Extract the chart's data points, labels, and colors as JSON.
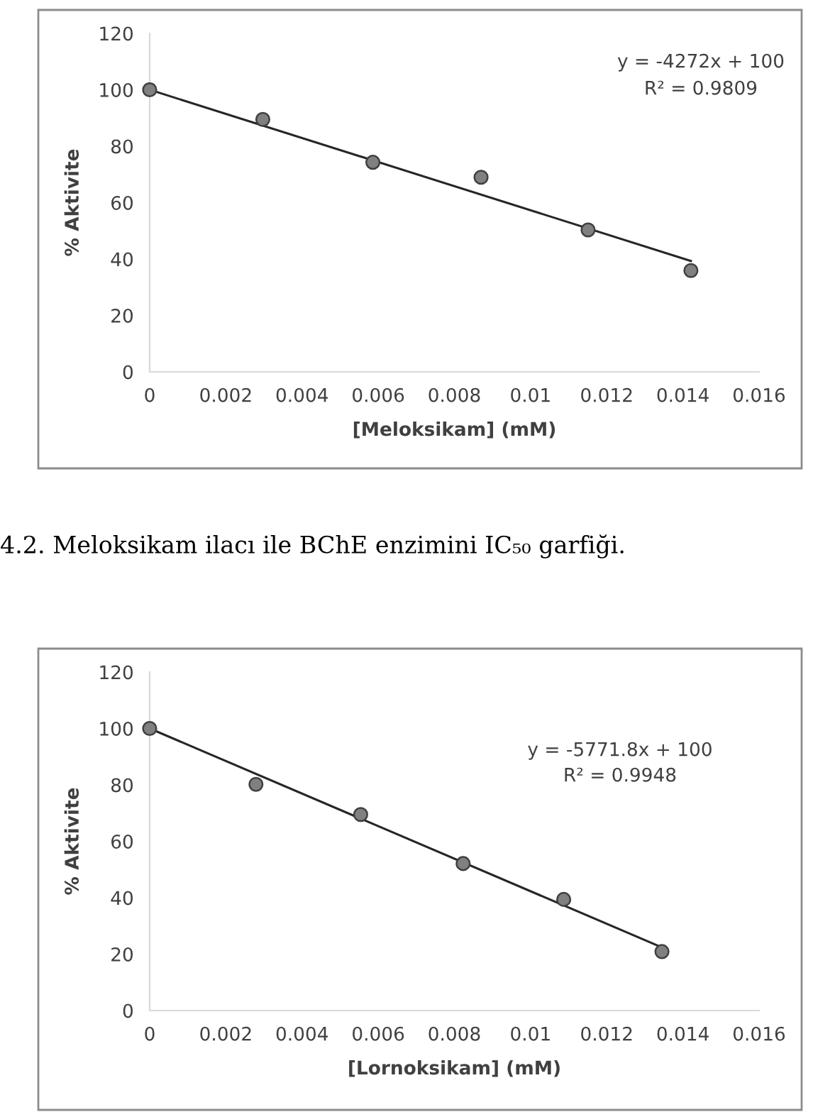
{
  "chart_data": [
    {
      "type": "scatter",
      "xlabel": "[Meloksikam] (mM)",
      "ylabel": "% Aktivite",
      "xlim": [
        0,
        0.016
      ],
      "xticks": [
        0,
        0.002,
        0.004,
        0.006,
        0.008,
        {
          "value": 0.01,
          "label": "0.01"
        },
        0.012,
        0.014,
        0.016
      ],
      "ylim": [
        0,
        120
      ],
      "yticks": [
        0,
        20,
        40,
        60,
        80,
        100,
        120
      ],
      "grid": false,
      "legend": false,
      "series": [
        {
          "marker": "circle",
          "color": "#808080",
          "x": [
            0,
            0.00297,
            0.00586,
            0.0087,
            0.01151,
            0.01421
          ],
          "values": [
            100,
            89.5,
            74.3,
            69.0,
            50.3,
            35.9
          ]
        },
        {
          "type": "line",
          "color": "#262626",
          "x": [
            0,
            0.01421
          ],
          "values": [
            100,
            39.3
          ]
        }
      ],
      "annotations": [
        "y = -4272x + 100",
        "R² = 0.9809",
        "4.2. Meloksikam ilacı ile BChE enzimini IC₅₀ garfiği."
      ]
    },
    {
      "type": "scatter",
      "xlabel": "[Lornoksikam] (mM)",
      "ylabel": "% Aktivite",
      "xlim": [
        0,
        0.016
      ],
      "xticks": [
        0,
        0.002,
        0.004,
        0.006,
        0.008,
        {
          "value": 0.01,
          "label": "0.01"
        },
        0.012,
        0.014,
        0.016
      ],
      "ylim": [
        0,
        120
      ],
      "yticks": [
        0,
        20,
        40,
        60,
        80,
        100,
        120
      ],
      "grid": false,
      "legend": false,
      "series": [
        {
          "marker": "circle",
          "color": "#808080",
          "x": [
            0,
            0.00279,
            0.00554,
            0.00823,
            0.01087,
            0.01345
          ],
          "values": [
            100,
            80.2,
            69.5,
            52.1,
            39.4,
            20.9
          ]
        },
        {
          "type": "line",
          "color": "#262626",
          "x": [
            0,
            0.01345
          ],
          "values": [
            100,
            22.4
          ]
        }
      ],
      "annotations": [
        "y = -5771.8x + 100",
        "R² = 0.9948"
      ]
    }
  ]
}
